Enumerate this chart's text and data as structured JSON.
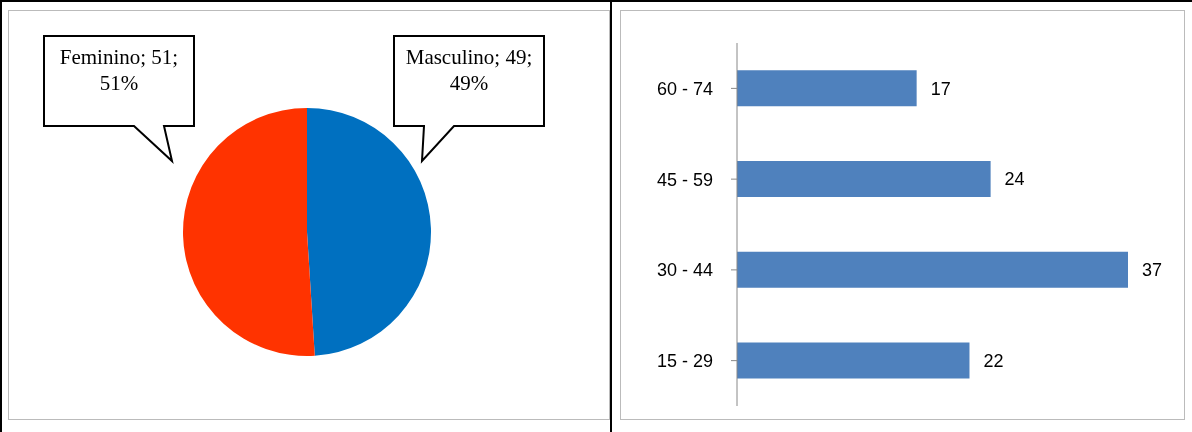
{
  "chart_data": [
    {
      "type": "pie",
      "categories": [
        "Masculino",
        "Feminino"
      ],
      "values": [
        49,
        51
      ],
      "colors": [
        "#0070c0",
        "#ff3300"
      ],
      "value_labels": [
        "; 49; 49%",
        "; 51; 51%"
      ]
    },
    {
      "type": "bar",
      "orientation": "horizontal",
      "categories": [
        "60 - 74",
        "45 - 59",
        "30 - 44",
        "15 - 29"
      ],
      "values": [
        17,
        24,
        37,
        22
      ],
      "color": "#4f81bd",
      "data_labels": true
    }
  ]
}
